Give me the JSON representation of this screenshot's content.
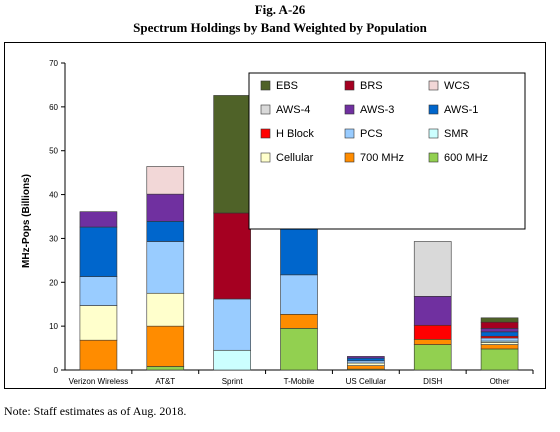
{
  "figure": {
    "label": "Fig. A-26",
    "title": "Spectrum Holdings by Band Weighted by Population",
    "note": "Note: Staff estimates as of Aug. 2018."
  },
  "chart_data": {
    "type": "bar",
    "stacked": true,
    "title": "",
    "xlabel": "",
    "ylabel": "MHz-Pops (Billions)",
    "ylim": [
      0,
      70
    ],
    "yticks": [
      0,
      10,
      20,
      30,
      40,
      50,
      60,
      70
    ],
    "categories": [
      "Verizon Wireless",
      "AT&T",
      "Sprint",
      "T-Mobile",
      "US Cellular",
      "DISH",
      "Other"
    ],
    "legend_placement": "top-right",
    "legend_order": [
      "EBS",
      "BRS",
      "WCS",
      "AWS-4",
      "AWS-3",
      "AWS-1",
      "H Block",
      "PCS",
      "SMR",
      "Cellular",
      "700 MHz",
      "600 MHz"
    ],
    "series": [
      {
        "name": "600 MHz",
        "color": "#92D050",
        "values": [
          0,
          0.8,
          0,
          9.5,
          0.2,
          5.8,
          4.8
        ]
      },
      {
        "name": "700 MHz",
        "color": "#FF8C00",
        "values": [
          6.8,
          9.2,
          0,
          3.2,
          0.8,
          1.2,
          1.0
        ]
      },
      {
        "name": "Cellular",
        "color": "#FFFFCC",
        "values": [
          7.9,
          7.5,
          0,
          0,
          0.6,
          0,
          0.5
        ]
      },
      {
        "name": "SMR",
        "color": "#CCFFFF",
        "values": [
          0,
          0,
          4.5,
          0,
          0,
          0,
          0.3
        ]
      },
      {
        "name": "PCS",
        "color": "#99CCFF",
        "values": [
          6.6,
          11.8,
          11.7,
          9.0,
          0.5,
          0,
          0.7
        ]
      },
      {
        "name": "H Block",
        "color": "#FF0000",
        "values": [
          0,
          0,
          0,
          0,
          0,
          3.2,
          0.4
        ]
      },
      {
        "name": "AWS-1",
        "color": "#0066CC",
        "values": [
          11.3,
          4.6,
          0,
          11.6,
          0.6,
          0,
          1.0
        ]
      },
      {
        "name": "AWS-3",
        "color": "#7030A0",
        "values": [
          3.5,
          6.2,
          0,
          1.0,
          0.4,
          6.6,
          0.8
        ]
      },
      {
        "name": "AWS-4",
        "color": "#D9D9D9",
        "values": [
          0,
          0,
          0,
          0,
          0,
          12.5,
          0
        ]
      },
      {
        "name": "WCS",
        "color": "#F2D7D7",
        "values": [
          0,
          6.3,
          0,
          0,
          0,
          0,
          0
        ]
      },
      {
        "name": "BRS",
        "color": "#A50021",
        "values": [
          0,
          0,
          19.6,
          0,
          0,
          0,
          1.4
        ]
      },
      {
        "name": "EBS",
        "color": "#4F6228",
        "values": [
          0,
          0,
          26.8,
          0,
          0,
          0,
          1.0
        ]
      }
    ]
  }
}
